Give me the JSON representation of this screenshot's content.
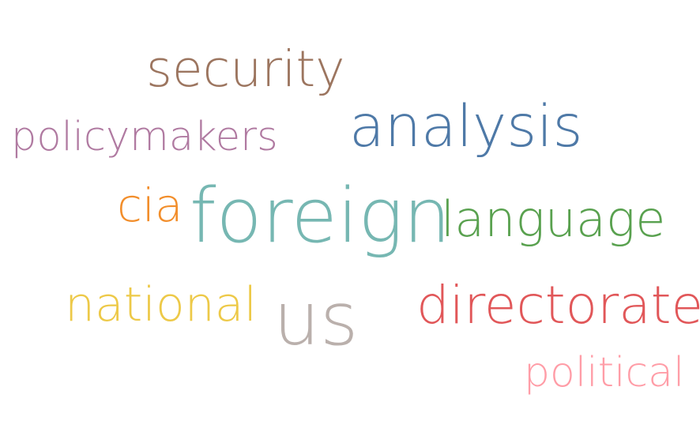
{
  "words": [
    {
      "key": "security",
      "text": "security",
      "color": "#9c755f"
    },
    {
      "key": "policymakers",
      "text": "policymakers",
      "color": "#b07aa1"
    },
    {
      "key": "analysis",
      "text": "analysis",
      "color": "#4e79a7"
    },
    {
      "key": "cia",
      "text": "cia",
      "color": "#f28e2b"
    },
    {
      "key": "foreign",
      "text": "foreign",
      "color": "#76b7b2"
    },
    {
      "key": "language",
      "text": "language",
      "color": "#59a14f"
    },
    {
      "key": "national",
      "text": "national",
      "color": "#edc948"
    },
    {
      "key": "us",
      "text": "us",
      "color": "#bab0ac"
    },
    {
      "key": "directorate",
      "text": "directorate",
      "color": "#e15759"
    },
    {
      "key": "political",
      "text": "political",
      "color": "#ff9da7"
    }
  ]
}
